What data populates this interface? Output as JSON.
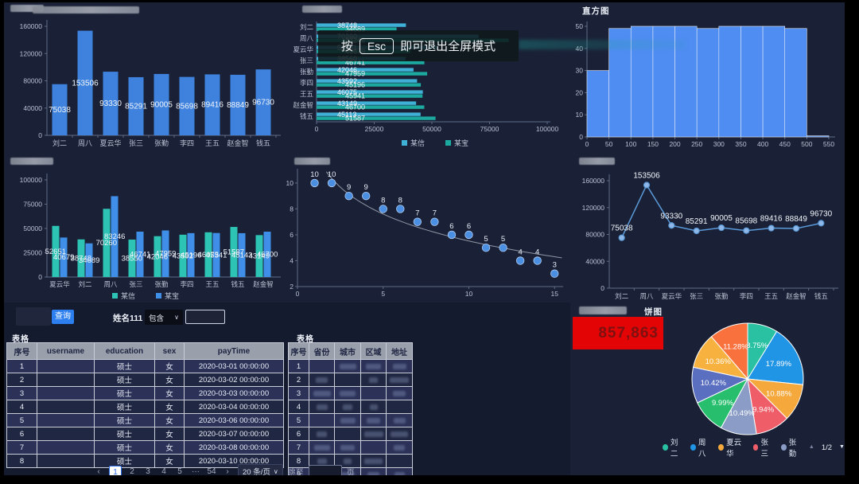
{
  "titles": {
    "histogram": "直方图",
    "pie": "饼图"
  },
  "fullscreen_overlay": {
    "press": "按",
    "key": "Esc",
    "message": "即可退出全屏模式"
  },
  "toolbar": {
    "query_button": "查询",
    "name_label": "姓名111",
    "match_option": "包含",
    "keyword_value": ""
  },
  "stat_box": {
    "value": "857,863",
    "bg": "#e30505",
    "text_color": "#7d1111"
  },
  "left_table": {
    "title": "表格",
    "headers": [
      "序号",
      "username",
      "education",
      "sex",
      "payTime"
    ],
    "rows": [
      [
        "1",
        "",
        "硕士",
        "女",
        "2020-03-01 00:00:00"
      ],
      [
        "2",
        "",
        "硕士",
        "女",
        "2020-03-02 00:00:00"
      ],
      [
        "3",
        "",
        "硕士",
        "女",
        "2020-03-03 00:00:00"
      ],
      [
        "4",
        "",
        "硕士",
        "女",
        "2020-03-04 00:00:00"
      ],
      [
        "5",
        "",
        "硕士",
        "女",
        "2020-03-06 00:00:00"
      ],
      [
        "6",
        "",
        "硕士",
        "女",
        "2020-03-07 00:00:00"
      ],
      [
        "7",
        "",
        "硕士",
        "女",
        "2020-03-08 00:00:00"
      ],
      [
        "8",
        "",
        "硕士",
        "女",
        "2020-03-10 00:00:00"
      ]
    ],
    "pagination": {
      "prev": "‹",
      "pages": [
        "1",
        "2",
        "3",
        "4",
        "5",
        "···",
        "54"
      ],
      "active_page": "1",
      "next": "›",
      "page_size": "20 条/页",
      "jump_label": "跳至",
      "page_unit": "页"
    }
  },
  "mid_table": {
    "title": "表格",
    "headers": [
      "序号",
      "省份",
      "城市",
      "区域",
      "地址"
    ],
    "row_numbers": [
      "1",
      "2",
      "3",
      "4",
      "5",
      "6",
      "7",
      "8",
      "9"
    ]
  },
  "pie_legend": {
    "items": [
      {
        "label": "刘二",
        "color": "#29c1a2"
      },
      {
        "label": "周八",
        "color": "#2094e5"
      },
      {
        "label": "夏云华",
        "color": "#f5a83b"
      },
      {
        "label": "张三",
        "color": "#ee5d68"
      },
      {
        "label": "张勤",
        "color": "#8b9dc6"
      }
    ],
    "pager": "1/2"
  },
  "chart_data": [
    {
      "id": "bar-top-left",
      "type": "bar",
      "color": "#3e82de",
      "categories": [
        "刘二",
        "周八",
        "夏云华",
        "张三",
        "张勤",
        "李四",
        "王五",
        "赵金智",
        "钱五"
      ],
      "values": [
        75038,
        153506,
        93330,
        85291,
        90005,
        85698,
        89416,
        88849,
        96730
      ],
      "ylim": [
        0,
        160000
      ],
      "yticks": [
        0,
        40000,
        80000,
        120000,
        160000
      ]
    },
    {
      "id": "hbar-top-middle",
      "type": "bar",
      "orientation": "horizontal",
      "categories": [
        "刘二",
        "周八",
        "夏云华",
        "张三",
        "张勤",
        "李四",
        "王五",
        "赵金智",
        "钱五"
      ],
      "series": [
        {
          "name": "某信",
          "color": "#3fb0d6",
          "values": [
            38748,
            70260,
            52651,
            38560,
            42046,
            43592,
            46075,
            43149,
            45113
          ]
        },
        {
          "name": "某宝",
          "color": "#1ca9a0",
          "values": [
            34689,
            83246,
            40679,
            46741,
            47959,
            45196,
            45941,
            46700,
            51587
          ]
        }
      ],
      "xlim": [
        0,
        100000
      ],
      "xticks": [
        0,
        25000,
        50000,
        75000,
        100000
      ]
    },
    {
      "id": "histogram-top-right",
      "type": "histogram",
      "title": "直方图",
      "color": "#4f8df2",
      "bin_start": 0,
      "bin_width": 50,
      "bin_counts": [
        30,
        49,
        50,
        50,
        50,
        49,
        50,
        50,
        50,
        49,
        0.5
      ],
      "xticks": [
        0,
        50,
        100,
        150,
        200,
        250,
        300,
        350,
        400,
        450,
        500,
        550
      ],
      "ylim": [
        0,
        50
      ],
      "yticks": [
        0,
        10,
        20,
        30,
        40,
        50
      ]
    },
    {
      "id": "grouped-bar-mid-left",
      "type": "bar",
      "categories": [
        "夏云华",
        "刘二",
        "周八",
        "张三",
        "张勤",
        "李四",
        "王五",
        "钱五",
        "赵金智"
      ],
      "series": [
        {
          "name": "某信",
          "color": "#2ec4b5",
          "values": [
            52651,
            38748,
            70260,
            38550,
            42046,
            43592,
            46075,
            51587,
            43149
          ]
        },
        {
          "name": "某宝",
          "color": "#3f8fe8",
          "values": [
            40679,
            34689,
            83246,
            46741,
            47959,
            45196,
            45341,
            45143,
            46700
          ]
        }
      ],
      "ylim": [
        0,
        100000
      ],
      "yticks": [
        0,
        25000,
        50000,
        75000,
        100000
      ]
    },
    {
      "id": "scatter-mid",
      "type": "scatter",
      "x": [
        1,
        2,
        3,
        4,
        5,
        6,
        7,
        8,
        9,
        10,
        11,
        12,
        13,
        14,
        15
      ],
      "y": [
        10,
        10,
        9,
        9,
        8,
        8,
        7,
        7,
        6,
        6,
        5,
        5,
        4,
        4,
        3
      ],
      "point_color": "#4b8fe2",
      "trend_line": {
        "type": "logarithmic",
        "color": "#8f96a5"
      },
      "xlim": [
        0,
        15.5
      ],
      "xticks": [
        0,
        5,
        10,
        15
      ],
      "ylim": [
        2,
        11.1
      ],
      "yticks": [
        2,
        4,
        6,
        8,
        10
      ]
    },
    {
      "id": "line-mid-right",
      "type": "line",
      "color": "#5b9ad8",
      "categories": [
        "刘二",
        "周八",
        "夏云华",
        "张三",
        "张勤",
        "李四",
        "王五",
        "赵金智",
        "钱五"
      ],
      "values": [
        75038,
        153506,
        93330,
        85291,
        90005,
        85698,
        89416,
        88849,
        96730
      ],
      "ylim": [
        0,
        160000
      ],
      "yticks": [
        0,
        40000,
        80000,
        120000,
        160000
      ]
    },
    {
      "id": "pie-bottom-right",
      "type": "pie",
      "title": "饼图",
      "slices": [
        {
          "label": "刘二",
          "value": 8.75,
          "color": "#29c1a2"
        },
        {
          "label": "周八",
          "value": 17.89,
          "color": "#2094e5"
        },
        {
          "label": "夏云华",
          "value": 10.88,
          "color": "#f5a83b"
        },
        {
          "label": "张三",
          "value": 9.94,
          "color": "#ee5d68"
        },
        {
          "label": "张勤",
          "value": 10.49,
          "color": "#8b9dc6"
        },
        {
          "label": "",
          "value": 9.99,
          "color": "#27bf6e"
        },
        {
          "label": "",
          "value": 10.42,
          "color": "#5a6fc0"
        },
        {
          "label": "",
          "value": 10.36,
          "color": "#f7b13e"
        },
        {
          "label": "",
          "value": 11.28,
          "color": "#f9713d"
        }
      ],
      "legend_pager": "1/2"
    }
  ]
}
